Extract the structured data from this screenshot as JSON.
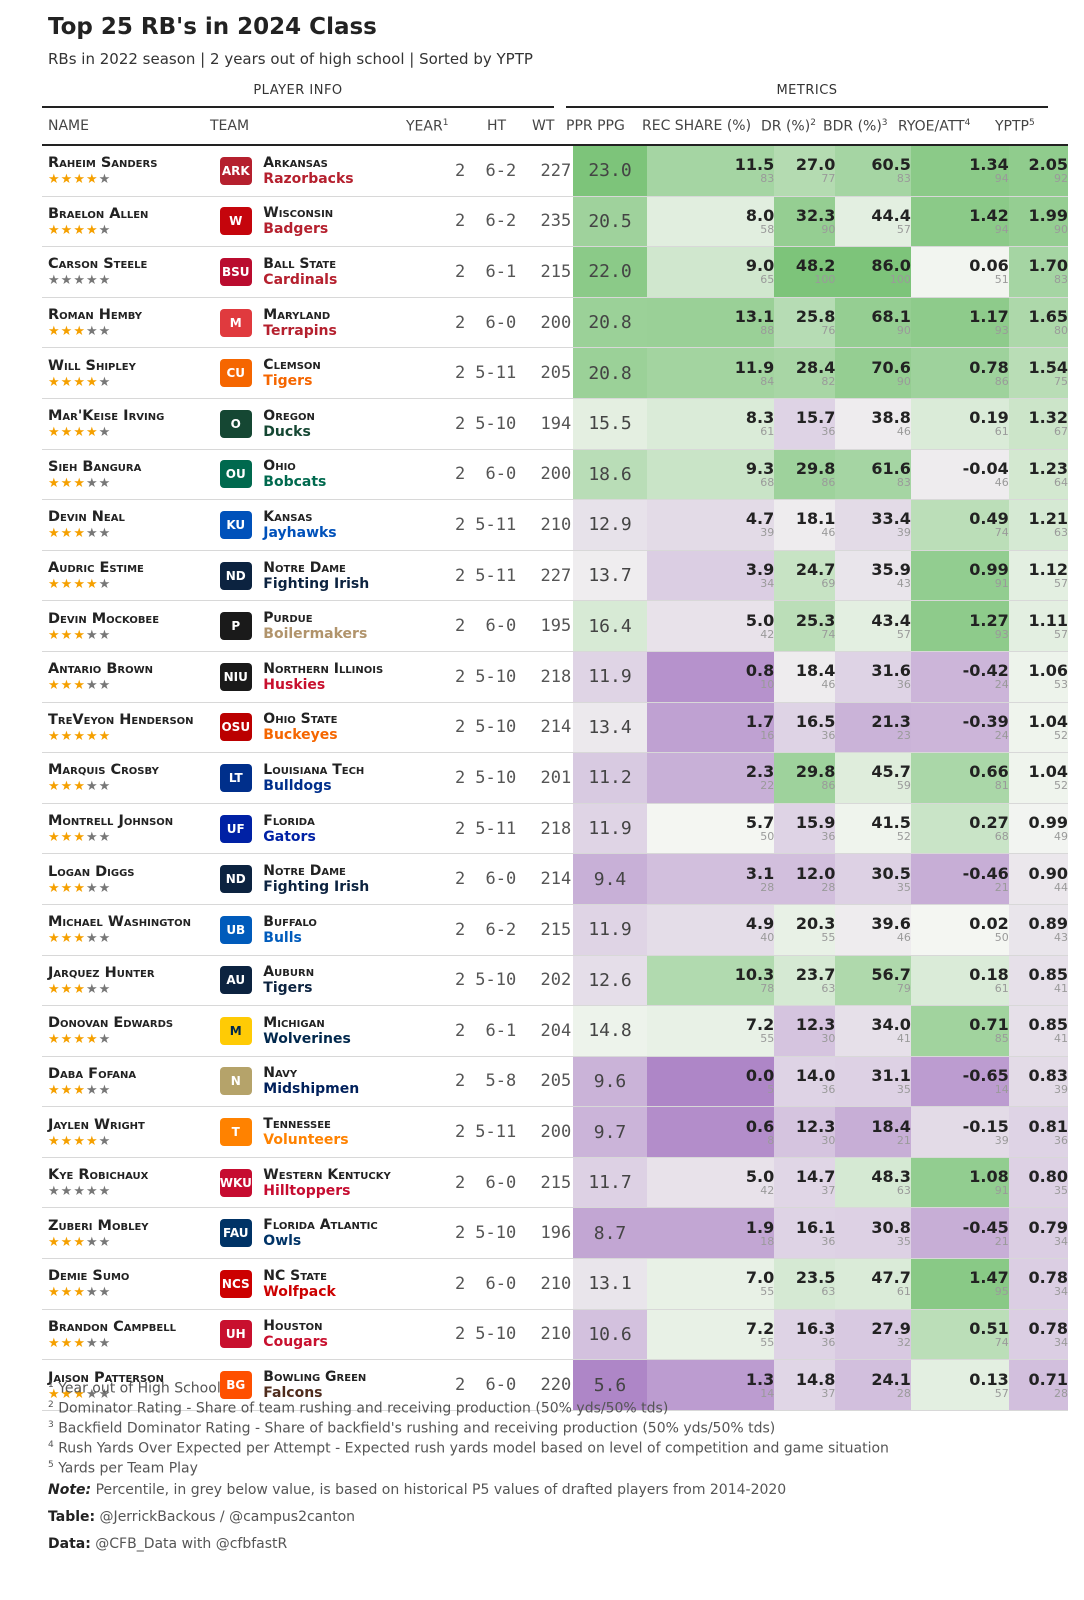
{
  "title": "Top 25 RB's in 2024 Class",
  "subtitle": "RBs in 2022 season | 2 years out of high school | Sorted by YPTP",
  "spanners": {
    "player_info": "PLAYER INFO",
    "metrics": "METRICS"
  },
  "headers": {
    "name": "NAME",
    "team": "TEAM",
    "year": "YEAR",
    "year_sup": "1",
    "ht": "HT",
    "wt": "WT",
    "ppr": "PPR PPG",
    "rec": "REC SHARE (%)",
    "dr": "DR (%)",
    "dr_sup": "2",
    "bdr": "BDR (%)",
    "bdr_sup": "3",
    "ryoe": "RYOE/ATT",
    "ryoe_sup": "4",
    "yptp": "YPTP",
    "yptp_sup": "5"
  },
  "colors": {
    "max_green": "#7dc47a",
    "max_purple": "#ae86c7",
    "neutral": "#f4f6f2"
  },
  "rows": [
    {
      "name": "Raheim Sanders",
      "stars": 4,
      "school": "Arkansas",
      "mascot": "Razorbacks",
      "mcolor": "#b5202e",
      "logo": "ARK",
      "lbg": "#b5202e",
      "year": "2",
      "ht": "6-2",
      "wt": "227",
      "ppr": "23.0",
      "rec": "11.5",
      "rec_p": "83",
      "dr": "27.0",
      "dr_p": "77",
      "bdr": "60.5",
      "bdr_p": "83",
      "ryoe": "1.34",
      "ryoe_p": "94",
      "yptp": "2.05",
      "yptp_p": "92"
    },
    {
      "name": "Braelon Allen",
      "stars": 4,
      "school": "Wisconsin",
      "mascot": "Badgers",
      "mcolor": "#b5202e",
      "logo": "W",
      "lbg": "#c5050c",
      "year": "2",
      "ht": "6-2",
      "wt": "235",
      "ppr": "20.5",
      "rec": "8.0",
      "rec_p": "58",
      "dr": "32.3",
      "dr_p": "90",
      "bdr": "44.4",
      "bdr_p": "57",
      "ryoe": "1.42",
      "ryoe_p": "94",
      "yptp": "1.99",
      "yptp_p": "90"
    },
    {
      "name": "Carson Steele",
      "stars": 0,
      "school": "Ball State",
      "mascot": "Cardinals",
      "mcolor": "#b5202e",
      "logo": "BSU",
      "lbg": "#ba0c2f",
      "year": "2",
      "ht": "6-1",
      "wt": "215",
      "ppr": "22.0",
      "rec": "9.0",
      "rec_p": "65",
      "dr": "48.2",
      "dr_p": "100",
      "bdr": "86.0",
      "bdr_p": "100",
      "ryoe": "0.06",
      "ryoe_p": "51",
      "yptp": "1.70",
      "yptp_p": "83"
    },
    {
      "name": "Roman Hemby",
      "stars": 3,
      "school": "Maryland",
      "mascot": "Terrapins",
      "mcolor": "#b5202e",
      "logo": "M",
      "lbg": "#e03a3e",
      "year": "2",
      "ht": "6-0",
      "wt": "200",
      "ppr": "20.8",
      "rec": "13.1",
      "rec_p": "88",
      "dr": "25.8",
      "dr_p": "76",
      "bdr": "68.1",
      "bdr_p": "90",
      "ryoe": "1.17",
      "ryoe_p": "93",
      "yptp": "1.65",
      "yptp_p": "80"
    },
    {
      "name": "Will Shipley",
      "stars": 4,
      "school": "Clemson",
      "mascot": "Tigers",
      "mcolor": "#f56600",
      "logo": "CU",
      "lbg": "#f56600",
      "year": "2",
      "ht": "5-11",
      "wt": "205",
      "ppr": "20.8",
      "rec": "11.9",
      "rec_p": "84",
      "dr": "28.4",
      "dr_p": "82",
      "bdr": "70.6",
      "bdr_p": "90",
      "ryoe": "0.78",
      "ryoe_p": "86",
      "yptp": "1.54",
      "yptp_p": "75"
    },
    {
      "name": "Mar'Keise Irving",
      "stars": 4,
      "school": "Oregon",
      "mascot": "Ducks",
      "mcolor": "#154733",
      "logo": "O",
      "lbg": "#154733",
      "year": "2",
      "ht": "5-10",
      "wt": "194",
      "ppr": "15.5",
      "rec": "8.3",
      "rec_p": "61",
      "dr": "15.7",
      "dr_p": "36",
      "bdr": "38.8",
      "bdr_p": "46",
      "ryoe": "0.19",
      "ryoe_p": "61",
      "yptp": "1.32",
      "yptp_p": "67"
    },
    {
      "name": "Sieh Bangura",
      "stars": 3,
      "school": "Ohio",
      "mascot": "Bobcats",
      "mcolor": "#00694e",
      "logo": "OU",
      "lbg": "#00694e",
      "year": "2",
      "ht": "6-0",
      "wt": "200",
      "ppr": "18.6",
      "rec": "9.3",
      "rec_p": "68",
      "dr": "29.8",
      "dr_p": "86",
      "bdr": "61.6",
      "bdr_p": "83",
      "ryoe": "-0.04",
      "ryoe_p": "46",
      "yptp": "1.23",
      "yptp_p": "64"
    },
    {
      "name": "Devin Neal",
      "stars": 3,
      "school": "Kansas",
      "mascot": "Jayhawks",
      "mcolor": "#0051ba",
      "logo": "KU",
      "lbg": "#0051ba",
      "year": "2",
      "ht": "5-11",
      "wt": "210",
      "ppr": "12.9",
      "rec": "4.7",
      "rec_p": "39",
      "dr": "18.1",
      "dr_p": "46",
      "bdr": "33.4",
      "bdr_p": "39",
      "ryoe": "0.49",
      "ryoe_p": "74",
      "yptp": "1.21",
      "yptp_p": "63"
    },
    {
      "name": "Audric Estime",
      "stars": 4,
      "school": "Notre Dame",
      "mascot": "Fighting Irish",
      "mcolor": "#0c2340",
      "logo": "ND",
      "lbg": "#0c2340",
      "year": "2",
      "ht": "5-11",
      "wt": "227",
      "ppr": "13.7",
      "rec": "3.9",
      "rec_p": "34",
      "dr": "24.7",
      "dr_p": "69",
      "bdr": "35.9",
      "bdr_p": "43",
      "ryoe": "0.99",
      "ryoe_p": "91",
      "yptp": "1.12",
      "yptp_p": "57"
    },
    {
      "name": "Devin Mockobee",
      "stars": 3,
      "school": "Purdue",
      "mascot": "Boilermakers",
      "mcolor": "#b1946c",
      "logo": "P",
      "lbg": "#1a1a1a",
      "year": "2",
      "ht": "6-0",
      "wt": "195",
      "ppr": "16.4",
      "rec": "5.0",
      "rec_p": "42",
      "dr": "25.3",
      "dr_p": "74",
      "bdr": "43.4",
      "bdr_p": "57",
      "ryoe": "1.27",
      "ryoe_p": "93",
      "yptp": "1.11",
      "yptp_p": "57"
    },
    {
      "name": "Antario Brown",
      "stars": 3,
      "school": "Northern Illinois",
      "mascot": "Huskies",
      "mcolor": "#c8102e",
      "logo": "NIU",
      "lbg": "#1a1a1a",
      "year": "2",
      "ht": "5-10",
      "wt": "218",
      "ppr": "11.9",
      "rec": "0.8",
      "rec_p": "10",
      "dr": "18.4",
      "dr_p": "46",
      "bdr": "31.6",
      "bdr_p": "36",
      "ryoe": "-0.42",
      "ryoe_p": "24",
      "yptp": "1.06",
      "yptp_p": "53"
    },
    {
      "name": "TreVeyon Henderson",
      "stars": 5,
      "school": "Ohio State",
      "mascot": "Buckeyes",
      "mcolor": "#f56600",
      "logo": "OSU",
      "lbg": "#bb0000",
      "year": "2",
      "ht": "5-10",
      "wt": "214",
      "ppr": "13.4",
      "rec": "1.7",
      "rec_p": "16",
      "dr": "16.5",
      "dr_p": "36",
      "bdr": "21.3",
      "bdr_p": "23",
      "ryoe": "-0.39",
      "ryoe_p": "24",
      "yptp": "1.04",
      "yptp_p": "52"
    },
    {
      "name": "Marquis Crosby",
      "stars": 3,
      "school": "Louisiana Tech",
      "mascot": "Bulldogs",
      "mcolor": "#002f8b",
      "logo": "LT",
      "lbg": "#002f8b",
      "year": "2",
      "ht": "5-10",
      "wt": "201",
      "ppr": "11.2",
      "rec": "2.3",
      "rec_p": "22",
      "dr": "29.8",
      "dr_p": "86",
      "bdr": "45.7",
      "bdr_p": "59",
      "ryoe": "0.66",
      "ryoe_p": "81",
      "yptp": "1.04",
      "yptp_p": "52"
    },
    {
      "name": "Montrell Johnson",
      "stars": 3,
      "school": "Florida",
      "mascot": "Gators",
      "mcolor": "#0021a5",
      "logo": "UF",
      "lbg": "#0021a5",
      "year": "2",
      "ht": "5-11",
      "wt": "218",
      "ppr": "11.9",
      "rec": "5.7",
      "rec_p": "50",
      "dr": "15.9",
      "dr_p": "36",
      "bdr": "41.5",
      "bdr_p": "52",
      "ryoe": "0.27",
      "ryoe_p": "68",
      "yptp": "0.99",
      "yptp_p": "49"
    },
    {
      "name": "Logan Diggs",
      "stars": 3,
      "school": "Notre Dame",
      "mascot": "Fighting Irish",
      "mcolor": "#0c2340",
      "logo": "ND",
      "lbg": "#0c2340",
      "year": "2",
      "ht": "6-0",
      "wt": "214",
      "ppr": "9.4",
      "rec": "3.1",
      "rec_p": "28",
      "dr": "12.0",
      "dr_p": "28",
      "bdr": "30.5",
      "bdr_p": "35",
      "ryoe": "-0.46",
      "ryoe_p": "21",
      "yptp": "0.90",
      "yptp_p": "44"
    },
    {
      "name": "Michael Washington",
      "stars": 3,
      "school": "Buffalo",
      "mascot": "Bulls",
      "mcolor": "#005bbb",
      "logo": "UB",
      "lbg": "#005bbb",
      "year": "2",
      "ht": "6-2",
      "wt": "215",
      "ppr": "11.9",
      "rec": "4.9",
      "rec_p": "40",
      "dr": "20.3",
      "dr_p": "55",
      "bdr": "39.6",
      "bdr_p": "46",
      "ryoe": "0.02",
      "ryoe_p": "50",
      "yptp": "0.89",
      "yptp_p": "43"
    },
    {
      "name": "Jarquez Hunter",
      "stars": 3,
      "school": "Auburn",
      "mascot": "Tigers",
      "mcolor": "#0c2340",
      "logo": "AU",
      "lbg": "#0c2340",
      "year": "2",
      "ht": "5-10",
      "wt": "202",
      "ppr": "12.6",
      "rec": "10.3",
      "rec_p": "78",
      "dr": "23.7",
      "dr_p": "63",
      "bdr": "56.7",
      "bdr_p": "79",
      "ryoe": "0.18",
      "ryoe_p": "61",
      "yptp": "0.85",
      "yptp_p": "41"
    },
    {
      "name": "Donovan Edwards",
      "stars": 4,
      "school": "Michigan",
      "mascot": "Wolverines",
      "mcolor": "#00274c",
      "logo": "M",
      "lbg": "#ffcb05",
      "year": "2",
      "ht": "6-1",
      "wt": "204",
      "ppr": "14.8",
      "rec": "7.2",
      "rec_p": "55",
      "dr": "12.3",
      "dr_p": "30",
      "bdr": "34.0",
      "bdr_p": "41",
      "ryoe": "0.71",
      "ryoe_p": "85",
      "yptp": "0.85",
      "yptp_p": "41"
    },
    {
      "name": "Daba Fofana",
      "stars": 3,
      "school": "Navy",
      "mascot": "Midshipmen",
      "mcolor": "#00205b",
      "logo": "N",
      "lbg": "#b5a36a",
      "year": "2",
      "ht": "5-8",
      "wt": "205",
      "ppr": "9.6",
      "rec": "0.0",
      "rec_p": "5",
      "dr": "14.0",
      "dr_p": "36",
      "bdr": "31.1",
      "bdr_p": "35",
      "ryoe": "-0.65",
      "ryoe_p": "14",
      "yptp": "0.83",
      "yptp_p": "39"
    },
    {
      "name": "Jaylen Wright",
      "stars": 4,
      "school": "Tennessee",
      "mascot": "Volunteers",
      "mcolor": "#ff8200",
      "logo": "T",
      "lbg": "#ff8200",
      "year": "2",
      "ht": "5-11",
      "wt": "200",
      "ppr": "9.7",
      "rec": "0.6",
      "rec_p": "8",
      "dr": "12.3",
      "dr_p": "30",
      "bdr": "18.4",
      "bdr_p": "21",
      "ryoe": "-0.15",
      "ryoe_p": "39",
      "yptp": "0.81",
      "yptp_p": "36"
    },
    {
      "name": "Kye Robichaux",
      "stars": 0,
      "school": "Western Kentucky",
      "mascot": "Hilltoppers",
      "mcolor": "#c60c30",
      "logo": "WKU",
      "lbg": "#c60c30",
      "year": "2",
      "ht": "6-0",
      "wt": "215",
      "ppr": "11.7",
      "rec": "5.0",
      "rec_p": "42",
      "dr": "14.7",
      "dr_p": "37",
      "bdr": "48.3",
      "bdr_p": "63",
      "ryoe": "1.08",
      "ryoe_p": "91",
      "yptp": "0.80",
      "yptp_p": "35"
    },
    {
      "name": "Zuberi Mobley",
      "stars": 3,
      "school": "Florida Atlantic",
      "mascot": "Owls",
      "mcolor": "#003366",
      "logo": "FAU",
      "lbg": "#003366",
      "year": "2",
      "ht": "5-10",
      "wt": "196",
      "ppr": "8.7",
      "rec": "1.9",
      "rec_p": "18",
      "dr": "16.1",
      "dr_p": "36",
      "bdr": "30.8",
      "bdr_p": "35",
      "ryoe": "-0.45",
      "ryoe_p": "21",
      "yptp": "0.79",
      "yptp_p": "34"
    },
    {
      "name": "Demie Sumo",
      "stars": 3,
      "school": "NC State",
      "mascot": "Wolfpack",
      "mcolor": "#cc0000",
      "logo": "NCS",
      "lbg": "#cc0000",
      "year": "2",
      "ht": "6-0",
      "wt": "210",
      "ppr": "13.1",
      "rec": "7.0",
      "rec_p": "55",
      "dr": "23.5",
      "dr_p": "63",
      "bdr": "47.7",
      "bdr_p": "61",
      "ryoe": "1.47",
      "ryoe_p": "95",
      "yptp": "0.78",
      "yptp_p": "34"
    },
    {
      "name": "Brandon Campbell",
      "stars": 3,
      "school": "Houston",
      "mascot": "Cougars",
      "mcolor": "#c8102e",
      "logo": "UH",
      "lbg": "#c8102e",
      "year": "2",
      "ht": "5-10",
      "wt": "210",
      "ppr": "10.6",
      "rec": "7.2",
      "rec_p": "55",
      "dr": "16.3",
      "dr_p": "36",
      "bdr": "27.9",
      "bdr_p": "32",
      "ryoe": "0.51",
      "ryoe_p": "74",
      "yptp": "0.78",
      "yptp_p": "34"
    },
    {
      "name": "Jaison Patterson",
      "stars": 3,
      "school": "Bowling Green",
      "mascot": "Falcons",
      "mcolor": "#4f2c1d",
      "logo": "BG",
      "lbg": "#fe5000",
      "year": "2",
      "ht": "6-0",
      "wt": "220",
      "ppr": "5.6",
      "rec": "1.3",
      "rec_p": "14",
      "dr": "14.8",
      "dr_p": "37",
      "bdr": "24.1",
      "bdr_p": "28",
      "ryoe": "0.13",
      "ryoe_p": "57",
      "yptp": "0.71",
      "yptp_p": "28"
    }
  ],
  "footnotes": [
    {
      "sup": "1",
      "text": "Year out of High School"
    },
    {
      "sup": "2",
      "text": "Dominator Rating - Share of team rushing and receiving production (50% yds/50% tds)"
    },
    {
      "sup": "3",
      "text": "Backfield Dominator Rating - Share of backfield's rushing and receiving production (50% yds/50% tds)"
    },
    {
      "sup": "4",
      "text": "Rush Yards Over Expected per Attempt - Expected rush yards model based on level of competition and game situation"
    },
    {
      "sup": "5",
      "text": "Yards per Team Play"
    }
  ],
  "note": {
    "label": "Note:",
    "text": " Percentile, in grey below value, is based on historical P5 values of drafted players from 2014-2020"
  },
  "table_credit": {
    "label": "Table:",
    "text": " @JerrickBackous / @campus2canton"
  },
  "data_credit": {
    "label": "Data:",
    "text": " @CFB_Data with @cfbfastR"
  }
}
